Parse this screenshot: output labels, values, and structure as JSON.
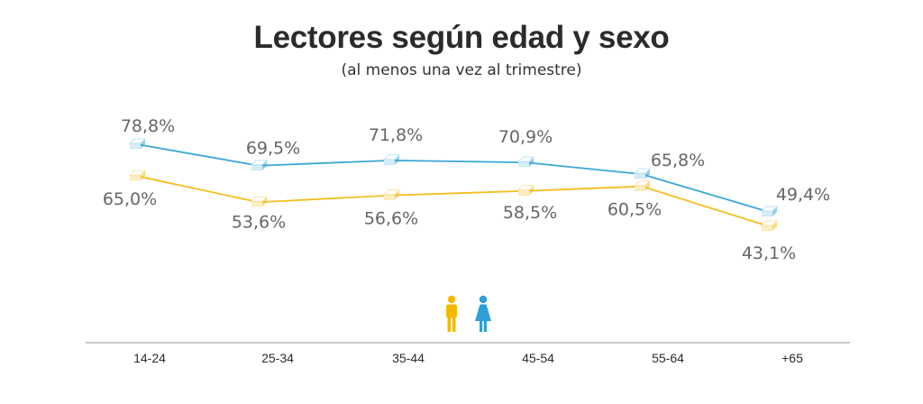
{
  "chart_data": {
    "type": "line",
    "title": "Lectores según edad y sexo",
    "subtitle": "(al menos una vez al trimestre)",
    "xlabel": "",
    "ylabel": "",
    "categories": [
      "14-24",
      "25-34",
      "35-44",
      "45-54",
      "55-64",
      "+65"
    ],
    "unit": "%",
    "decimal_separator": ",",
    "grid": false,
    "legend": {
      "placement": "bottom-center",
      "entries": [
        {
          "name": "Hombres",
          "icon": "man-icon",
          "color": "#f5b800"
        },
        {
          "name": "Mujeres",
          "icon": "woman-icon",
          "color": "#2e9fd8"
        }
      ]
    },
    "series": [
      {
        "name": "Mujeres",
        "color": "#3aa7d6",
        "marker": "book-stack-blue",
        "values": [
          78.8,
          69.5,
          71.8,
          70.9,
          65.8,
          49.4
        ],
        "labels": [
          "78,8%",
          "69,5%",
          "71,8%",
          "70,9%",
          "65,8%",
          "49,4%"
        ]
      },
      {
        "name": "Hombres",
        "color": "#f5bd1f",
        "marker": "book-stack-yellow",
        "values": [
          65.0,
          53.6,
          56.6,
          58.5,
          60.5,
          43.1
        ],
        "labels": [
          "65,0%",
          "53,6%",
          "56,6%",
          "58,5%",
          "60,5%",
          "43,1%"
        ]
      }
    ]
  }
}
